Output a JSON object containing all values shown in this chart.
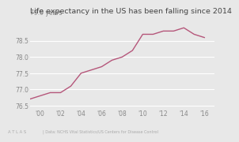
{
  "title": "Life expectancy in the US has been falling since 2014",
  "top_ylabel": "79.0 years",
  "years": [
    1999,
    2000,
    2001,
    2002,
    2003,
    2004,
    2005,
    2006,
    2007,
    2008,
    2009,
    2010,
    2011,
    2012,
    2013,
    2014,
    2015,
    2016
  ],
  "values": [
    76.7,
    76.8,
    76.9,
    76.9,
    77.1,
    77.5,
    77.6,
    77.7,
    77.9,
    78.0,
    78.2,
    78.7,
    78.7,
    78.8,
    78.8,
    78.9,
    78.7,
    78.6
  ],
  "line_color": "#b5567a",
  "bg_color": "#e8e8e8",
  "grid_color": "#ffffff",
  "title_fontsize": 6.8,
  "tick_fontsize": 5.5,
  "label_color": "#888888",
  "yticks": [
    76.5,
    77.0,
    77.5,
    78.0,
    78.5
  ],
  "ytick_labels": [
    "76.5",
    "77.0",
    "77.5",
    "78.0",
    "78.5"
  ],
  "xticks": [
    2000,
    2002,
    2004,
    2006,
    2008,
    2010,
    2012,
    2014,
    2016
  ],
  "xlim": [
    1999,
    2017
  ],
  "ylim": [
    76.4,
    79.25
  ],
  "source_text": "| Data: NCHS Vital Statistics/US Centers for Disease Control",
  "atlas_text": "A T L A S"
}
